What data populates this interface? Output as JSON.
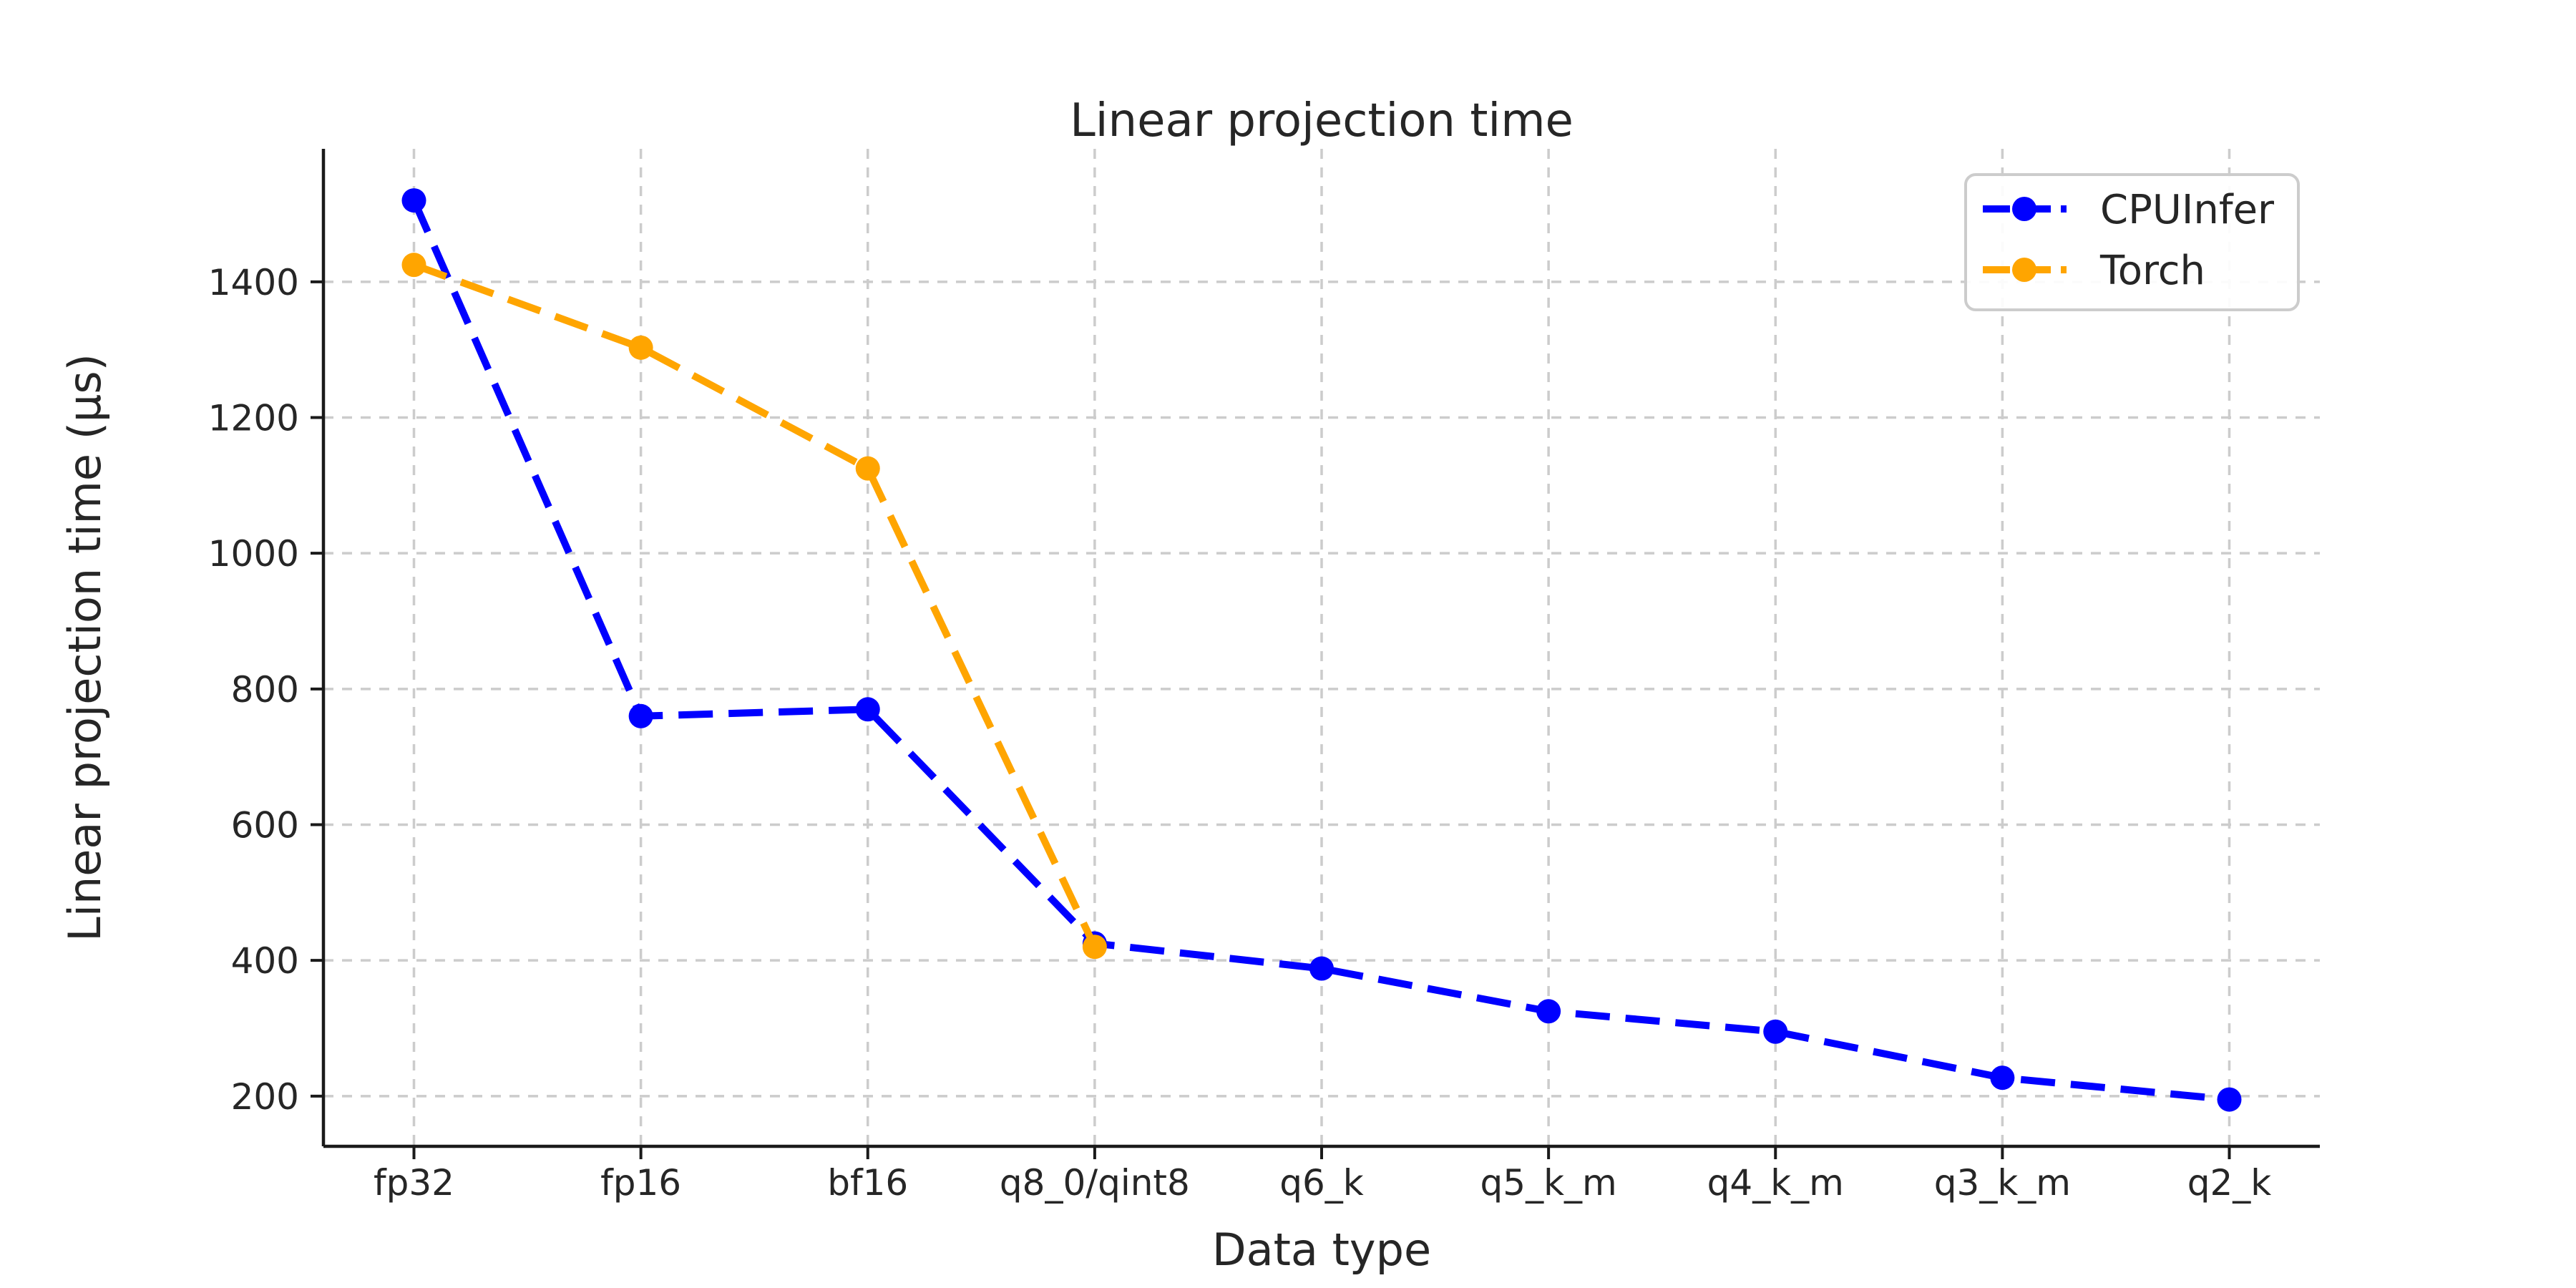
{
  "chart_data": {
    "type": "line",
    "title": "Linear projection time",
    "xlabel": "Data type",
    "ylabel": "Linear projection time (µs)",
    "categories": [
      "fp32",
      "fp16",
      "bf16",
      "q8_0/qint8",
      "q6_k",
      "q5_k_m",
      "q4_k_m",
      "q3_k_m",
      "q2_k"
    ],
    "series": [
      {
        "name": "CPUInfer",
        "color": "#0000ff",
        "linestyle": "dashed",
        "marker": "circle",
        "values": [
          1520,
          760,
          770,
          425,
          388,
          325,
          295,
          227,
          195
        ]
      },
      {
        "name": "Torch",
        "color": "#ffa500",
        "linestyle": "dashed",
        "marker": "circle",
        "values": [
          1425,
          1303,
          1125,
          420,
          null,
          null,
          null,
          null,
          null
        ]
      }
    ],
    "yticks": [
      200,
      400,
      600,
      800,
      1000,
      1200,
      1400
    ],
    "ylim": [
      126,
      1596
    ],
    "grid": true,
    "legend_position": "upper right",
    "legend_labels": [
      "CPUInfer",
      "Torch"
    ]
  },
  "styles": {
    "background": "#ffffff",
    "grid_color": "#cccccc",
    "spine_color": "#1a1a1a",
    "text_color": "#262626",
    "legend_border_color": "#cccccc",
    "legend_fill": "#ffffff"
  }
}
